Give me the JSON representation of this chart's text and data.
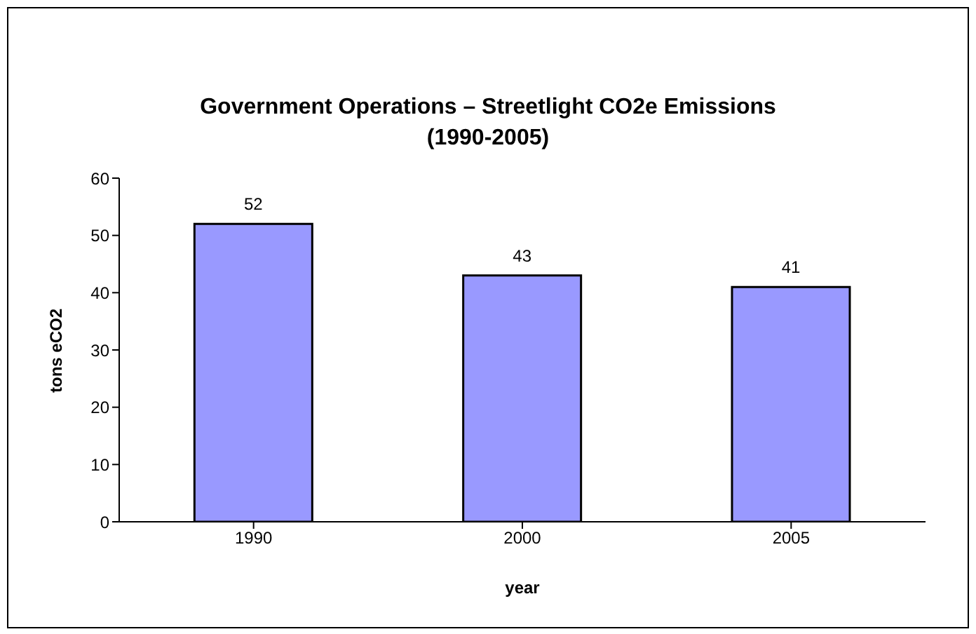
{
  "chart_data": {
    "type": "bar",
    "title": "Government Operations – Streetlight CO2e Emissions\n(1990-2005)",
    "xlabel": "year",
    "ylabel": "tons eCO2",
    "categories": [
      "1990",
      "2000",
      "2005"
    ],
    "values": [
      52,
      43,
      41
    ],
    "color": "#9999ff",
    "ylim": [
      0,
      60
    ],
    "yticks": [
      0,
      10,
      20,
      30,
      40,
      50,
      60
    ],
    "grid": false,
    "data_labels": true
  }
}
